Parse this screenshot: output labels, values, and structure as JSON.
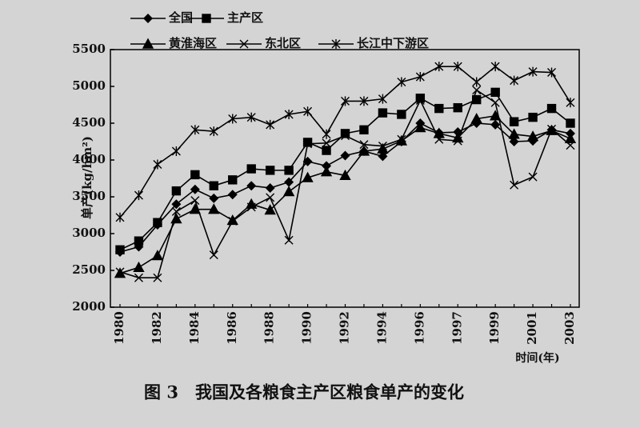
{
  "chart_data": {
    "type": "line",
    "title": "图 3　我国及各粮食主产区粮食单产的变化",
    "x_label": "时间(年)",
    "y_label": "单产(kg/hm²)",
    "categories": [
      "1980",
      null,
      "1982",
      null,
      "1984",
      null,
      "1986",
      null,
      "1988",
      null,
      "1990",
      null,
      "1992",
      null,
      "1994",
      null,
      "1996",
      null,
      "1997",
      null,
      "1999",
      null,
      "2001",
      null,
      "2003"
    ],
    "series": [
      {
        "name": "全国",
        "color": "#000000",
        "marker": "diamond",
        "values": [
          2750,
          2820,
          3120,
          3400,
          3600,
          3480,
          3530,
          3650,
          3620,
          3700,
          3980,
          3920,
          4060,
          4120,
          4050,
          4250,
          4500,
          4370,
          4380,
          4500,
          4480,
          4250,
          4260,
          4410,
          4360
        ]
      },
      {
        "name": "主产区",
        "color": "#000000",
        "marker": "square",
        "values": [
          2780,
          2900,
          3150,
          3580,
          3800,
          3650,
          3730,
          3880,
          3860,
          3860,
          4240,
          4130,
          4360,
          4410,
          4640,
          4620,
          4840,
          4700,
          4710,
          4820,
          4920,
          4520,
          4580,
          4700,
          4500
        ]
      },
      {
        "name": "黄淮海区",
        "color": "#000000",
        "marker": "triangle",
        "values": [
          2460,
          2540,
          2700,
          3200,
          3330,
          3330,
          3180,
          3400,
          3320,
          3570,
          3760,
          3840,
          3790,
          4120,
          4150,
          4260,
          4440,
          4360,
          4300,
          4560,
          4600,
          4350,
          4320,
          4400,
          4290
        ]
      },
      {
        "name": "东北区",
        "color": "#000000",
        "marker": "x",
        "values": [
          2480,
          2400,
          2400,
          3300,
          3450,
          2710,
          3170,
          3360,
          3490,
          2910,
          4220,
          4230,
          4330,
          4210,
          4190,
          4280,
          4810,
          4280,
          4260,
          4950,
          4780,
          3660,
          3770,
          4420,
          4200
        ]
      },
      {
        "name": "长江中下游区",
        "color": "#000000",
        "marker": "asterisk",
        "values": [
          3220,
          3520,
          3940,
          4120,
          4410,
          4390,
          4560,
          4580,
          4480,
          4620,
          4660,
          4350,
          4800,
          4800,
          4830,
          5060,
          5130,
          5270,
          5270,
          5060,
          5270,
          5080,
          5200,
          5190,
          4780
        ]
      }
    ],
    "ylim": [
      2000,
      5500
    ],
    "yticks": [
      2000,
      2500,
      3000,
      3500,
      4000,
      4500,
      5000,
      5500
    ]
  }
}
